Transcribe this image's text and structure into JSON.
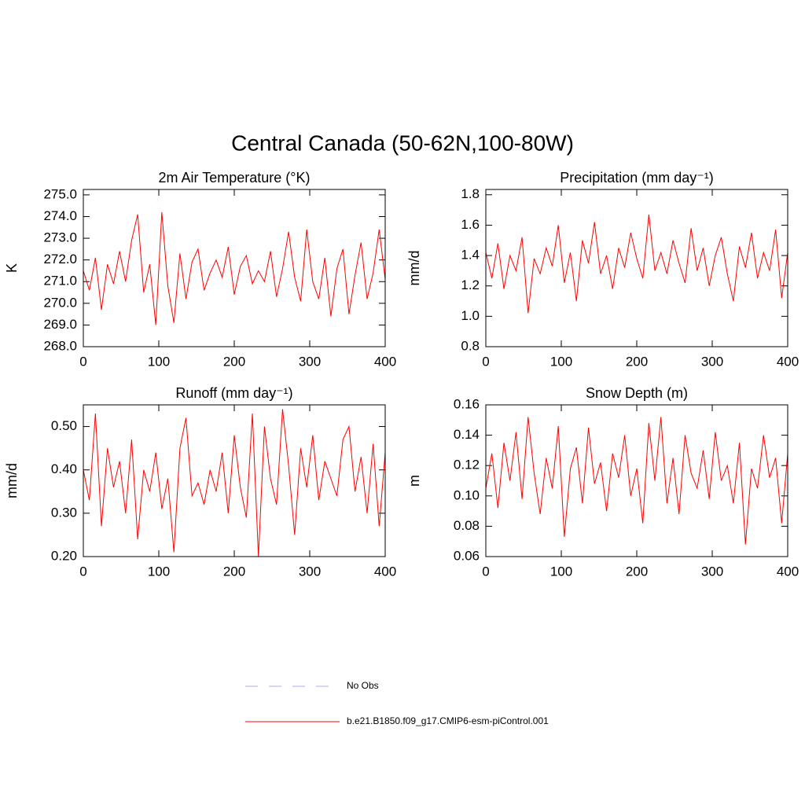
{
  "title": "Central Canada (50-62N,100-80W)",
  "chart_data": [
    {
      "type": "line",
      "title": "2m Air Temperature (°K)",
      "ylabel": "K",
      "x": [
        0,
        8,
        16,
        24,
        32,
        40,
        48,
        56,
        64,
        72,
        80,
        88,
        96,
        104,
        112,
        120,
        128,
        136,
        144,
        152,
        160,
        168,
        176,
        184,
        192,
        200,
        208,
        216,
        224,
        232,
        240,
        248,
        256,
        264,
        272,
        280,
        288,
        296,
        304,
        312,
        320,
        328,
        336,
        344,
        352,
        360,
        368,
        376,
        384,
        392,
        400
      ],
      "series": [
        {
          "color": "#ff0000",
          "values": [
            271.5,
            270.6,
            272.1,
            269.7,
            271.8,
            270.9,
            272.4,
            271.0,
            272.9,
            274.1,
            270.5,
            271.8,
            269.0,
            274.2,
            270.8,
            269.1,
            272.3,
            270.2,
            271.9,
            272.5,
            270.6,
            271.4,
            272.0,
            271.2,
            272.6,
            270.4,
            271.7,
            272.2,
            270.9,
            271.5,
            271.0,
            272.4,
            270.3,
            271.6,
            273.3,
            271.2,
            270.1,
            273.4,
            271.0,
            270.2,
            272.1,
            269.4,
            271.6,
            272.5,
            269.5,
            271.3,
            272.8,
            270.2,
            271.4,
            273.4,
            271.1
          ]
        }
      ],
      "xlim": [
        0,
        400
      ],
      "xticks": [
        0,
        100,
        200,
        300,
        400
      ],
      "ylim": [
        268,
        275.25
      ],
      "yticks": [
        {
          "value": 268,
          "label": "268.0"
        },
        {
          "value": 269,
          "label": "269.0"
        },
        {
          "value": 270,
          "label": "270.0"
        },
        {
          "value": 271,
          "label": "271.0"
        },
        {
          "value": 272,
          "label": "272.0"
        },
        {
          "value": 273,
          "label": "273.0"
        },
        {
          "value": 274,
          "label": "274.0"
        },
        {
          "value": 275,
          "label": "275.0"
        }
      ]
    },
    {
      "type": "line",
      "title": "Precipitation (mm day⁻¹)",
      "ylabel": "mm/d",
      "x": [
        0,
        8,
        16,
        24,
        32,
        40,
        48,
        56,
        64,
        72,
        80,
        88,
        96,
        104,
        112,
        120,
        128,
        136,
        144,
        152,
        160,
        168,
        176,
        184,
        192,
        200,
        208,
        216,
        224,
        232,
        240,
        248,
        256,
        264,
        272,
        280,
        288,
        296,
        304,
        312,
        320,
        328,
        336,
        344,
        352,
        360,
        368,
        376,
        384,
        392,
        400
      ],
      "series": [
        {
          "color": "#ff0000",
          "values": [
            1.42,
            1.25,
            1.48,
            1.18,
            1.4,
            1.3,
            1.52,
            1.02,
            1.38,
            1.28,
            1.45,
            1.33,
            1.6,
            1.22,
            1.42,
            1.1,
            1.5,
            1.35,
            1.62,
            1.28,
            1.4,
            1.18,
            1.45,
            1.32,
            1.55,
            1.38,
            1.25,
            1.67,
            1.3,
            1.42,
            1.28,
            1.5,
            1.35,
            1.22,
            1.58,
            1.3,
            1.45,
            1.2,
            1.4,
            1.52,
            1.28,
            1.1,
            1.46,
            1.32,
            1.55,
            1.25,
            1.42,
            1.3,
            1.57,
            1.12,
            1.42
          ]
        }
      ],
      "xlim": [
        0,
        400
      ],
      "xticks": [
        0,
        100,
        200,
        300,
        400
      ],
      "ylim": [
        0.8,
        1.835
      ],
      "yticks": [
        0.8,
        {
          "value": 1.0,
          "label": "1.0"
        },
        1.2,
        1.4,
        1.6,
        1.8
      ]
    },
    {
      "type": "line",
      "title": "Runoff (mm day⁻¹)",
      "ylabel": "mm/d",
      "x": [
        0,
        8,
        16,
        24,
        32,
        40,
        48,
        56,
        64,
        72,
        80,
        88,
        96,
        104,
        112,
        120,
        128,
        136,
        144,
        152,
        160,
        168,
        176,
        184,
        192,
        200,
        208,
        216,
        224,
        232,
        240,
        248,
        256,
        264,
        272,
        280,
        288,
        296,
        304,
        312,
        320,
        328,
        336,
        344,
        352,
        360,
        368,
        376,
        384,
        392,
        400
      ],
      "series": [
        {
          "color": "#ff0000",
          "values": [
            0.4,
            0.33,
            0.53,
            0.27,
            0.45,
            0.36,
            0.42,
            0.3,
            0.47,
            0.24,
            0.4,
            0.35,
            0.44,
            0.31,
            0.38,
            0.21,
            0.45,
            0.52,
            0.34,
            0.37,
            0.32,
            0.4,
            0.35,
            0.44,
            0.3,
            0.48,
            0.36,
            0.29,
            0.53,
            0.2,
            0.5,
            0.38,
            0.32,
            0.54,
            0.41,
            0.25,
            0.45,
            0.36,
            0.48,
            0.33,
            0.42,
            0.38,
            0.34,
            0.47,
            0.5,
            0.35,
            0.43,
            0.3,
            0.46,
            0.27,
            0.44
          ]
        }
      ],
      "xlim": [
        0,
        400
      ],
      "xticks": [
        0,
        100,
        200,
        300,
        400
      ],
      "ylim": [
        0.2,
        0.55
      ],
      "yticks": [
        {
          "value": 0.2,
          "label": "0.20"
        },
        {
          "value": 0.3,
          "label": "0.30"
        },
        {
          "value": 0.4,
          "label": "0.40"
        },
        {
          "value": 0.5,
          "label": "0.50"
        }
      ]
    },
    {
      "type": "line",
      "title": "Snow Depth (m)",
      "ylabel": "m",
      "x": [
        0,
        8,
        16,
        24,
        32,
        40,
        48,
        56,
        64,
        72,
        80,
        88,
        96,
        104,
        112,
        120,
        128,
        136,
        144,
        152,
        160,
        168,
        176,
        184,
        192,
        200,
        208,
        216,
        224,
        232,
        240,
        248,
        256,
        264,
        272,
        280,
        288,
        296,
        304,
        312,
        320,
        328,
        336,
        344,
        352,
        360,
        368,
        376,
        384,
        392,
        400
      ],
      "series": [
        {
          "color": "#ff0000",
          "values": [
            0.105,
            0.128,
            0.092,
            0.135,
            0.11,
            0.142,
            0.098,
            0.152,
            0.115,
            0.088,
            0.125,
            0.105,
            0.146,
            0.073,
            0.118,
            0.132,
            0.095,
            0.145,
            0.108,
            0.122,
            0.09,
            0.128,
            0.112,
            0.14,
            0.1,
            0.118,
            0.082,
            0.148,
            0.11,
            0.152,
            0.095,
            0.125,
            0.088,
            0.14,
            0.115,
            0.105,
            0.13,
            0.098,
            0.142,
            0.11,
            0.12,
            0.095,
            0.135,
            0.068,
            0.118,
            0.105,
            0.14,
            0.112,
            0.125,
            0.082,
            0.128
          ]
        }
      ],
      "xlim": [
        0,
        400
      ],
      "xticks": [
        0,
        100,
        200,
        300,
        400
      ],
      "ylim": [
        0.06,
        0.16
      ],
      "yticks": [
        0.06,
        0.08,
        {
          "value": 0.1,
          "label": "0.10"
        },
        0.12,
        0.14,
        0.16
      ]
    }
  ],
  "legend": [
    {
      "label": "No Obs",
      "color": "#aaaaff",
      "dash": true
    },
    {
      "label": "b.e21.B1850.f09_g17.CMIP6-esm-piControl.001",
      "color": "#ff0000",
      "dash": false
    }
  ]
}
